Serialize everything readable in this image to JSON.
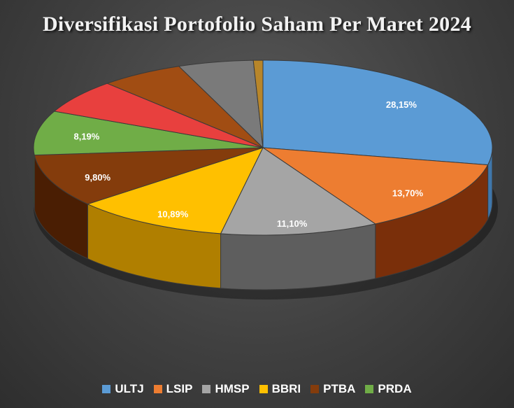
{
  "chart_data": {
    "type": "pie",
    "title": "Diversifikasi Portofolio Saham Per Maret 2024",
    "slices": [
      {
        "name": "ULTJ",
        "value": 28.15,
        "label": "28,15%",
        "color": "#5b9bd5",
        "side": "#3f77ab"
      },
      {
        "name": "LSIP",
        "value": 13.7,
        "label": "13,70%",
        "color": "#ed7d31",
        "side": "#7a2f0a"
      },
      {
        "name": "HMSP",
        "value": 11.1,
        "label": "11,10%",
        "color": "#a5a5a5",
        "side": "#5e5e5e"
      },
      {
        "name": "BBRI",
        "value": 10.89,
        "label": "10,89%",
        "color": "#ffc000",
        "side": "#b07f00"
      },
      {
        "name": "PTBA",
        "value": 9.8,
        "label": "9,80%",
        "color": "#843c0c",
        "side": "#4a1e03"
      },
      {
        "name": "PRDA",
        "value": 8.19,
        "label": "8,19%",
        "color": "#70ad47",
        "side": "#3f6c22"
      },
      {
        "name": "",
        "value": 6.3,
        "label": "",
        "color": "#e8403e",
        "side": "#8c1f1c"
      },
      {
        "name": "",
        "value": 5.9,
        "label": "",
        "color": "#a14d13",
        "side": "#5c2808"
      },
      {
        "name": "",
        "value": 5.3,
        "label": "",
        "color": "#7a7a7a",
        "side": "#444444"
      },
      {
        "name": "",
        "value": 0.67,
        "label": "",
        "color": "#b8862a",
        "side": "#6e4e10"
      }
    ],
    "legend": [
      "ULTJ",
      "LSIP",
      "HMSP",
      "BBRI",
      "PTBA",
      "PRDA"
    ],
    "legend_position": "bottom"
  }
}
